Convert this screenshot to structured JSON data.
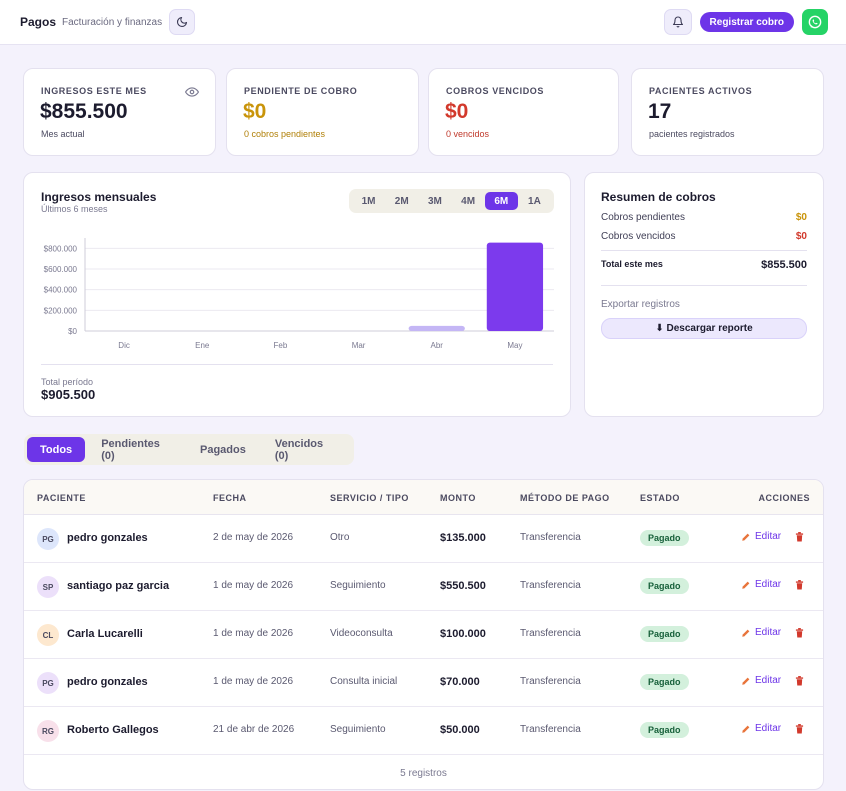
{
  "header": {
    "title": "Pagos",
    "subtitle": "Facturación y finanzas",
    "register_label": "Registrar cobro"
  },
  "stats": [
    {
      "label": "INGRESOS ESTE MES",
      "value": "$855.500",
      "sub": "Mes actual",
      "value_color": "#1c1b2e",
      "sub_color": "#4b4a60"
    },
    {
      "label": "PENDIENTE DE COBRO",
      "value": "$0",
      "sub": "0 cobros pendientes",
      "value_color": "#c9940a",
      "sub_color": "#b07f06"
    },
    {
      "label": "COBROS VENCIDOS",
      "value": "$0",
      "sub": "0 vencidos",
      "value_color": "#d2392c",
      "sub_color": "#c0392b"
    },
    {
      "label": "PACIENTES ACTIVOS",
      "value": "17",
      "sub": "pacientes registrados",
      "value_color": "#1c1b2e",
      "sub_color": "#4b4a60"
    }
  ],
  "chart": {
    "title": "Ingresos mensuales",
    "subtitle": "Últimos 6 meses",
    "ranges": [
      "1M",
      "2M",
      "3M",
      "4M",
      "6M",
      "1A"
    ],
    "active_range": "6M",
    "total_label": "Total período",
    "total_value": "$905.500"
  },
  "chart_data": {
    "type": "bar",
    "categories": [
      "Dic",
      "Ene",
      "Feb",
      "Mar",
      "Abr",
      "May"
    ],
    "values": [
      0,
      0,
      0,
      0,
      50000,
      855500
    ],
    "ylim": [
      0,
      900000
    ],
    "yticks": [
      0,
      200000,
      400000,
      600000,
      800000
    ],
    "ytick_labels": [
      "$0",
      "$200.000",
      "$400.000",
      "$600.000",
      "$800.000"
    ],
    "grid": true,
    "colors": [
      "#6d35e8",
      "#6d35e8",
      "#6d35e8",
      "#6d35e8",
      "#c4b6f5",
      "#7c3aed"
    ]
  },
  "summary": {
    "title": "Resumen de cobros",
    "pending_label": "Cobros pendientes",
    "pending_value": "$0",
    "overdue_label": "Cobros vencidos",
    "overdue_value": "$0",
    "total_label": "Total este mes",
    "total_value": "$855.500",
    "export_label": "Exportar registros",
    "download_label": "⬇ Descargar reporte"
  },
  "tabs": [
    {
      "label": "Todos",
      "active": true
    },
    {
      "label": "Pendientes (0)",
      "active": false
    },
    {
      "label": "Pagados",
      "active": false
    },
    {
      "label": "Vencidos (0)",
      "active": false
    }
  ],
  "table": {
    "headers": [
      "PACIENTE",
      "FECHA",
      "SERVICIO / TIPO",
      "MONTO",
      "MÉTODO DE PAGO",
      "ESTADO",
      "ACCIONES"
    ],
    "edit_label": "Editar",
    "rows": [
      {
        "initials": "PG",
        "avatar_color": "#dde6fb",
        "name": "pedro gonzales",
        "date": "2 de may de 2026",
        "service": "Otro",
        "amount": "$135.000",
        "method": "Transferencia",
        "status": "Pagado"
      },
      {
        "initials": "SP",
        "avatar_color": "#ece0fa",
        "name": "santiago paz garcia",
        "date": "1 de may de 2026",
        "service": "Seguimiento",
        "amount": "$550.500",
        "method": "Transferencia",
        "status": "Pagado"
      },
      {
        "initials": "CL",
        "avatar_color": "#fde8cf",
        "name": "Carla Lucarelli",
        "date": "1 de may de 2026",
        "service": "Videoconsulta",
        "amount": "$100.000",
        "method": "Transferencia",
        "status": "Pagado"
      },
      {
        "initials": "PG",
        "avatar_color": "#ece0fa",
        "name": "pedro gonzales",
        "date": "1 de may de 2026",
        "service": "Consulta inicial",
        "amount": "$70.000",
        "method": "Transferencia",
        "status": "Pagado"
      },
      {
        "initials": "RG",
        "avatar_color": "#f8e0ea",
        "name": "Roberto Gallegos",
        "date": "21 de abr de 2026",
        "service": "Seguimiento",
        "amount": "$50.000",
        "method": "Transferencia",
        "status": "Pagado"
      }
    ],
    "footer": "5 registros"
  }
}
